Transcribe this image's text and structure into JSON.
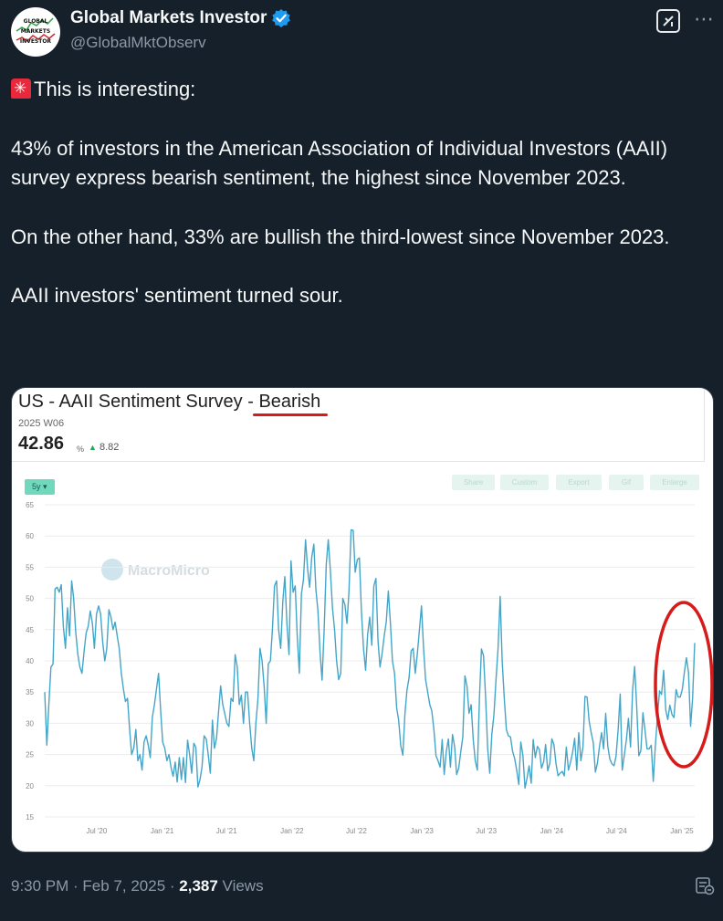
{
  "author": {
    "display_name": "Global Markets Investor",
    "handle": "@GlobalMktObserv",
    "avatar_text": [
      "GLOBAL",
      "MARKETS",
      "INVESTOR"
    ]
  },
  "header": {
    "grok_icon": "grok-icon",
    "more_icon": "more-icon"
  },
  "tweet": {
    "line1": "This is interesting:",
    "para1": "43% of investors in the American Association of Individual Investors (AAII) survey express bearish sentiment, the highest since November 2023.",
    "para2": "On the other hand, 33% are bullish the third-lowest since November 2023.",
    "para3": "AAII investors' sentiment turned sour."
  },
  "card": {
    "title_prefix": "US - AAII Sentiment Survey - ",
    "title_highlight": "Bearish",
    "period": "2025 W06",
    "value": "42.86",
    "unit": "%",
    "change": "8.82",
    "btn_period": "5y ▾",
    "toolbar": [
      "Share",
      "Custom",
      "Export",
      "Gif",
      "Enlarge"
    ],
    "watermark": "MacroMicro"
  },
  "chart_data": {
    "type": "line",
    "title": "US - AAII Sentiment Survey - Bearish",
    "ylim": [
      15,
      65
    ],
    "yticks": [
      65,
      60,
      55,
      50,
      45,
      40,
      35,
      30,
      25,
      20,
      15
    ],
    "xtick_labels": [
      "Jul '20",
      "Jan '21",
      "Jul '21",
      "Jan '22",
      "Jul '22",
      "Jan '23",
      "Jul '23",
      "Jan '24",
      "Jul '24",
      "Jan '25"
    ],
    "x_start": "2020-02-06",
    "x_end": "2025-02-06",
    "grid": true,
    "series": [
      {
        "color": "#44a5c8",
        "values": [
          35,
          26.5,
          33,
          39,
          39.5,
          51.5,
          51.8,
          51,
          52.2,
          45.5,
          42,
          48.5,
          44,
          52.8,
          50,
          44.5,
          41,
          39,
          38,
          41.5,
          44.5,
          45.5,
          48,
          46,
          42,
          47.5,
          48.8,
          47.5,
          43,
          40,
          42,
          48.2,
          47,
          45,
          46.2,
          44,
          42,
          38,
          35.5,
          33.5,
          34,
          29,
          25,
          26,
          29,
          24,
          25,
          22.5,
          27,
          28,
          26.5,
          24.5,
          31,
          33,
          35.5,
          38,
          32,
          27,
          26,
          24,
          25,
          23,
          21.5,
          23.8,
          20.6,
          24.5,
          21,
          24.5,
          20.5,
          27.3,
          25,
          22,
          26.8,
          26.2,
          19.8,
          21,
          23,
          28,
          27.5,
          25,
          22,
          30.5,
          26,
          27.6,
          32,
          36,
          33,
          31.5,
          30,
          29.5,
          34,
          33.5,
          41,
          39,
          33,
          34.5,
          30,
          35,
          35,
          30,
          26,
          24,
          30,
          34,
          42,
          40,
          35.8,
          30,
          39.5,
          40,
          45,
          52,
          52.8,
          45,
          42,
          49.5,
          53.5,
          46,
          41,
          56,
          51,
          52,
          44,
          38,
          50.7,
          53,
          59.4,
          54.7,
          51.8,
          56.6,
          58.7,
          51.5,
          48,
          41.3,
          36.9,
          45,
          55.5,
          59.4,
          54.5,
          48.5,
          45,
          40,
          37,
          38,
          50,
          49,
          46,
          51.2,
          61,
          60.9,
          54.2,
          56.2,
          56.5,
          48,
          42,
          38.5,
          44.2,
          47,
          42.5,
          52,
          53.2,
          43.2,
          39,
          41.2,
          44,
          46.2,
          51.2,
          46,
          40,
          38,
          32.5,
          30.5,
          26.4,
          24.9,
          31.3,
          35.3,
          37.3,
          41.6,
          42,
          38,
          41.2,
          44.9,
          48.8,
          42,
          37,
          35,
          33,
          32,
          29,
          24.8,
          24,
          23,
          27.4,
          21.8,
          25.5,
          27.5,
          23,
          28.2,
          26.3,
          21.8,
          22.8,
          25.5,
          27.8,
          37.6,
          35.9,
          31.6,
          33,
          27.4,
          24,
          22.5,
          34,
          41.9,
          40.8,
          34,
          26,
          22,
          28.3,
          31.4,
          36.9,
          42,
          50.3,
          40,
          34,
          29,
          28,
          27.8,
          25.5,
          24.4,
          22.5,
          20.2,
          27,
          24.9,
          19.6,
          21.2,
          23.2,
          20.4,
          27.4,
          24.5,
          26.3,
          25.8,
          22.8,
          23.8,
          26.6,
          22.4,
          23.6,
          27.5,
          26.6,
          23.5,
          21.6,
          22,
          22.3,
          21.6,
          26.2,
          22.5,
          23.7,
          25.3,
          27.6,
          22.5,
          28.5,
          24,
          26.2,
          34.3,
          34.2,
          30.3,
          28.5,
          26.9,
          22.2,
          23.6,
          26.3,
          28.5,
          25.9,
          31.6,
          26.3,
          24.3,
          23.5,
          23.2,
          24.7,
          28.9,
          34.7,
          22.5,
          24.9,
          27.4,
          30.8,
          26.2,
          35.4,
          39.1,
          32.6,
          24.8,
          25.6,
          31.7,
          28.8,
          25.9,
          25.9,
          26.5,
          20.7,
          26.4,
          31.1,
          35.2,
          34.6,
          38.5,
          32.1,
          30.6,
          32.9,
          31.4,
          30.9,
          35.4,
          34.2,
          34.2,
          35.4,
          38.2,
          40.5,
          38.2,
          29.5,
          34,
          42.86
        ]
      }
    ]
  },
  "footer": {
    "time": "9:30 PM · Feb 7, 2025 · ",
    "views_num": "2,387",
    "views_label": " Views"
  }
}
